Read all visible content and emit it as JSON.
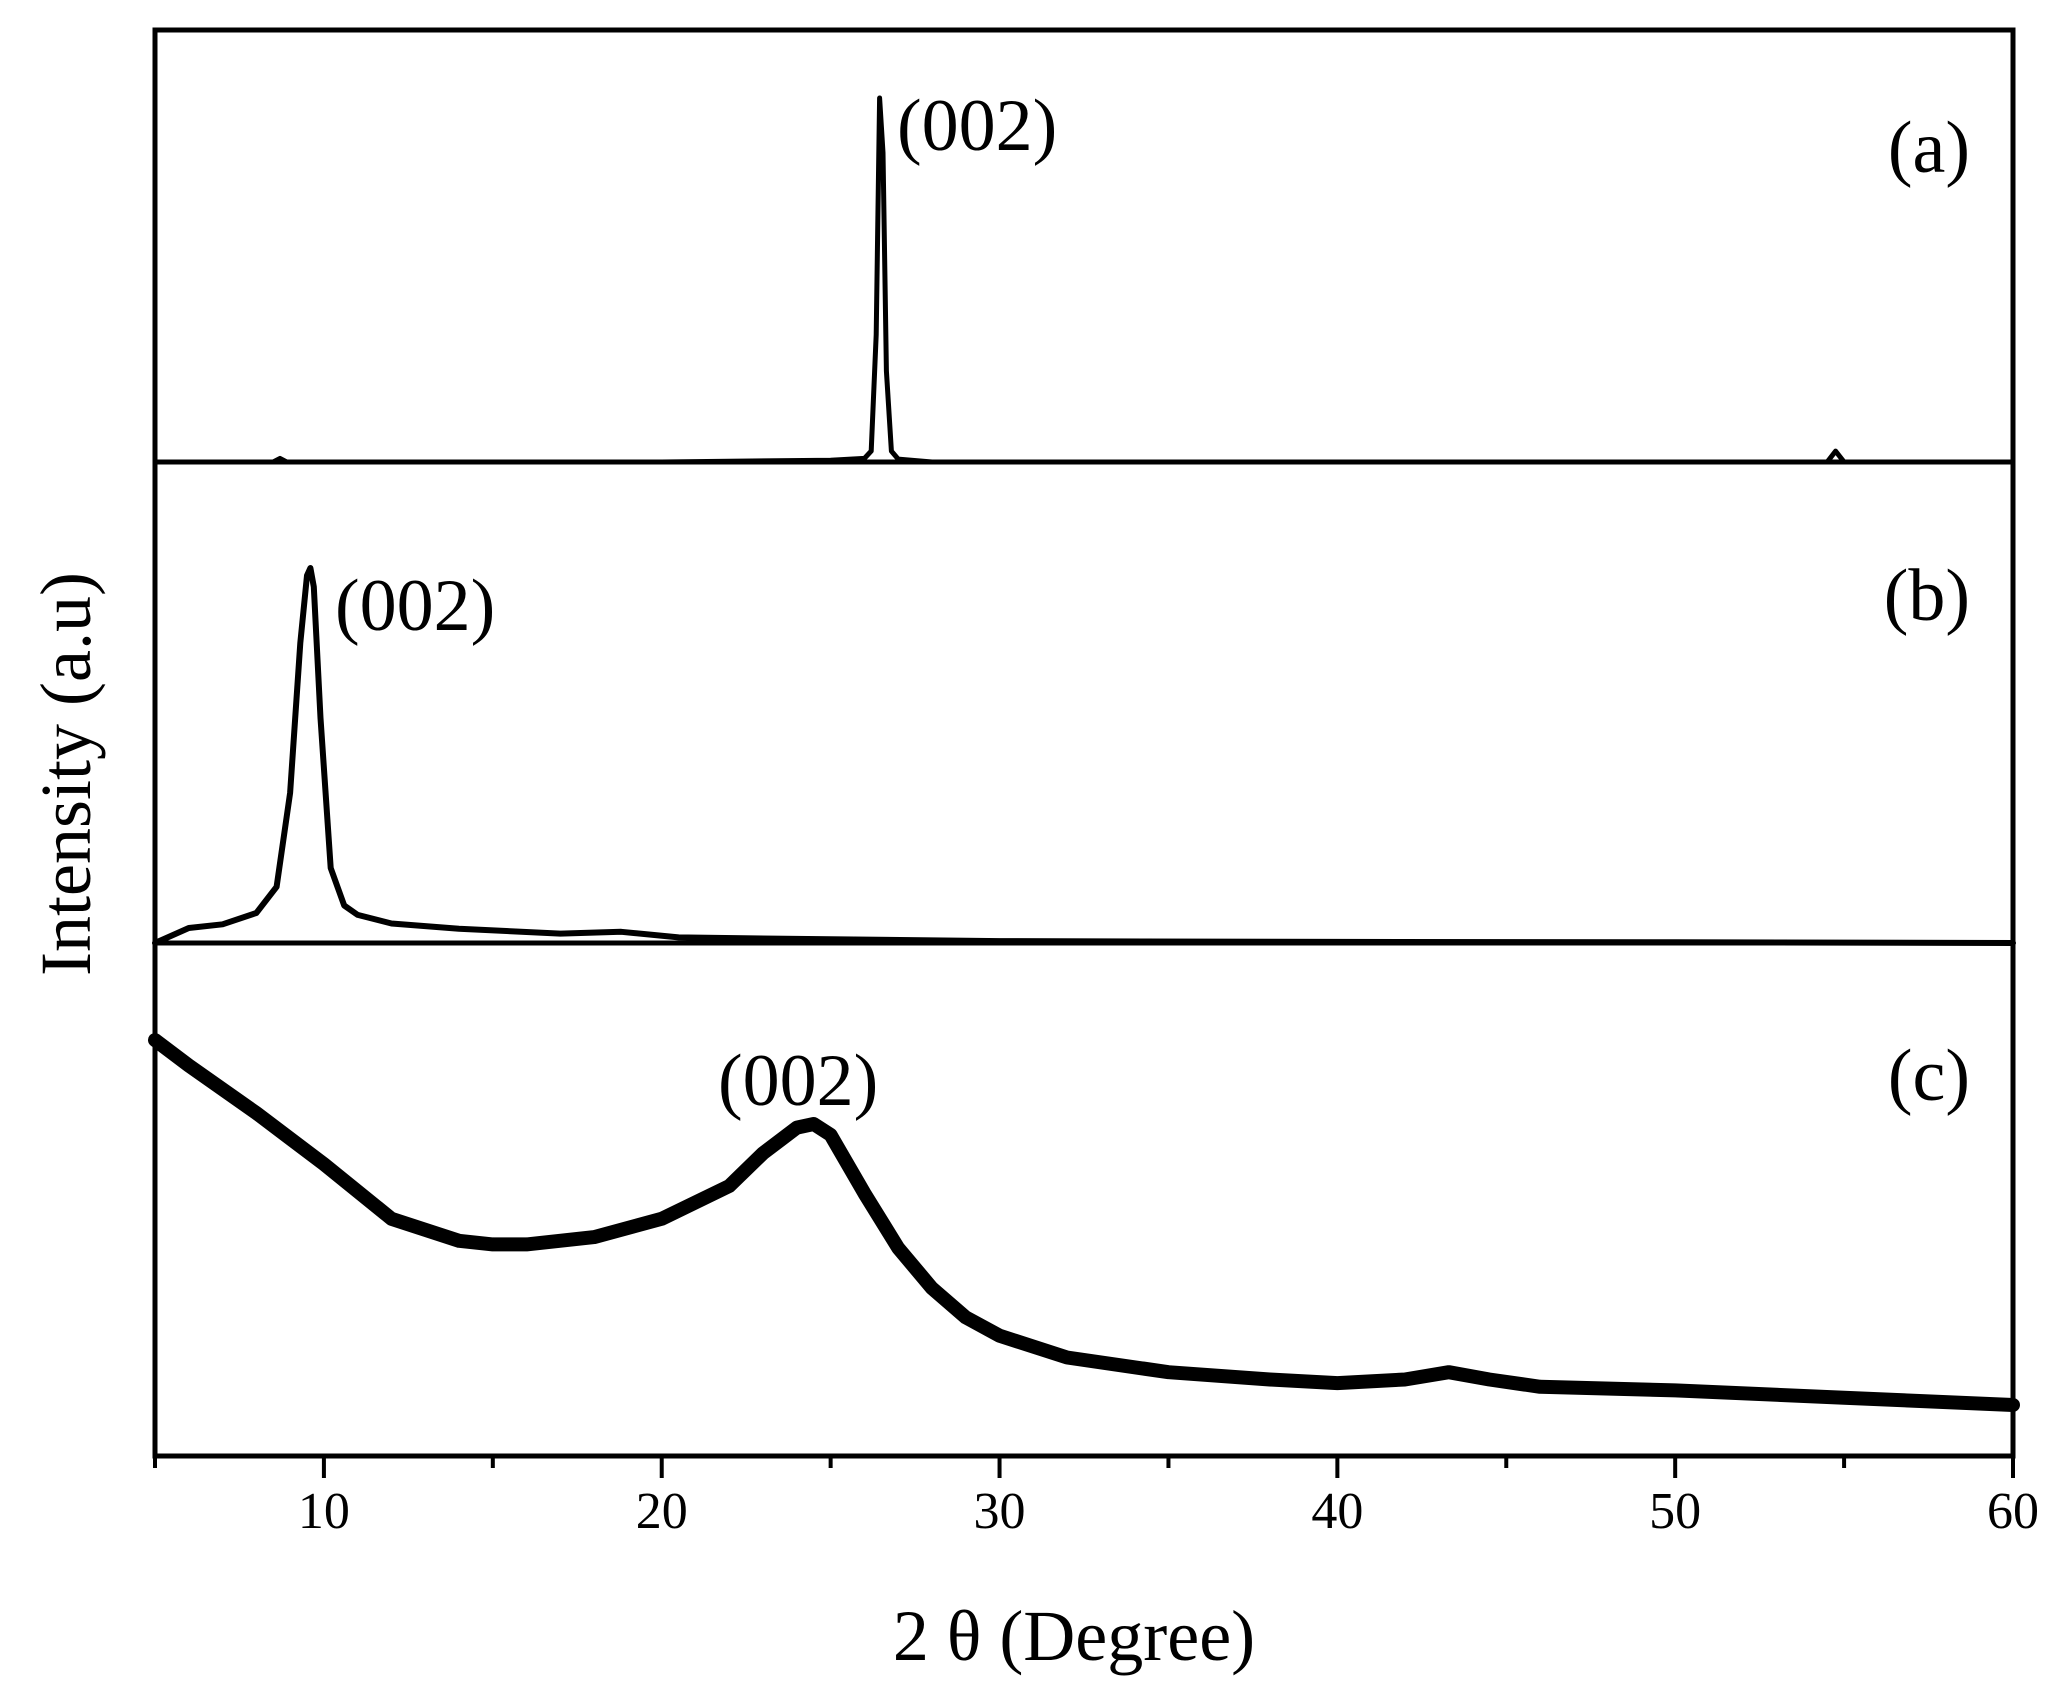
{
  "chart_data": {
    "type": "line",
    "xlabel": "2 θ (Degree)",
    "ylabel": "Intensity (a.u)",
    "xlim": [
      5,
      60
    ],
    "xticks": [
      10,
      20,
      30,
      40,
      50,
      60
    ],
    "yticks_shown": false,
    "grid": false,
    "layout": "stacked",
    "series": [
      {
        "label": "(a)",
        "peak_label": "(002)",
        "peak_position": 26.5,
        "intensity_range": [
          0,
          1
        ],
        "x": [
          5,
          8.5,
          8.7,
          8.9,
          20,
          25,
          26.0,
          26.2,
          26.35,
          26.45,
          26.55,
          26.65,
          26.8,
          27.0,
          28,
          40,
          54.5,
          54.75,
          55.0,
          60
        ],
        "y": [
          0.0,
          0.0,
          0.01,
          0.0,
          0.0,
          0.005,
          0.01,
          0.03,
          0.35,
          1.0,
          0.85,
          0.25,
          0.03,
          0.008,
          0.0,
          0.0,
          0.0,
          0.03,
          0.0,
          0.0
        ]
      },
      {
        "label": "(b)",
        "peak_label": "(002)",
        "peak_position": 9.6,
        "intensity_range": [
          0,
          1
        ],
        "x": [
          5,
          6,
          7,
          8,
          8.6,
          9.0,
          9.3,
          9.5,
          9.6,
          9.7,
          9.9,
          10.2,
          10.6,
          11,
          12,
          14,
          17,
          18.8,
          20.5,
          25,
          30,
          40,
          50,
          60
        ],
        "y": [
          0.0,
          0.04,
          0.05,
          0.08,
          0.15,
          0.4,
          0.8,
          0.98,
          1.0,
          0.95,
          0.6,
          0.2,
          0.1,
          0.075,
          0.052,
          0.038,
          0.025,
          0.03,
          0.015,
          0.01,
          0.005,
          0.003,
          0.002,
          0.0
        ]
      },
      {
        "label": "(c)",
        "peak_label": "(002)",
        "peak_position": 24.4,
        "intensity_range": [
          0,
          1
        ],
        "x": [
          5,
          6,
          8,
          10,
          12,
          14,
          15,
          16,
          18,
          20,
          22,
          23,
          24,
          24.5,
          25,
          26,
          27,
          28,
          29,
          30,
          32,
          35,
          38,
          40,
          42,
          43.3,
          44.5,
          46,
          50,
          55,
          60
        ],
        "y": [
          1.0,
          0.93,
          0.8,
          0.66,
          0.51,
          0.45,
          0.44,
          0.44,
          0.46,
          0.51,
          0.6,
          0.69,
          0.76,
          0.77,
          0.74,
          0.58,
          0.43,
          0.32,
          0.24,
          0.19,
          0.13,
          0.09,
          0.07,
          0.06,
          0.07,
          0.09,
          0.07,
          0.05,
          0.04,
          0.02,
          0.0
        ]
      }
    ]
  }
}
